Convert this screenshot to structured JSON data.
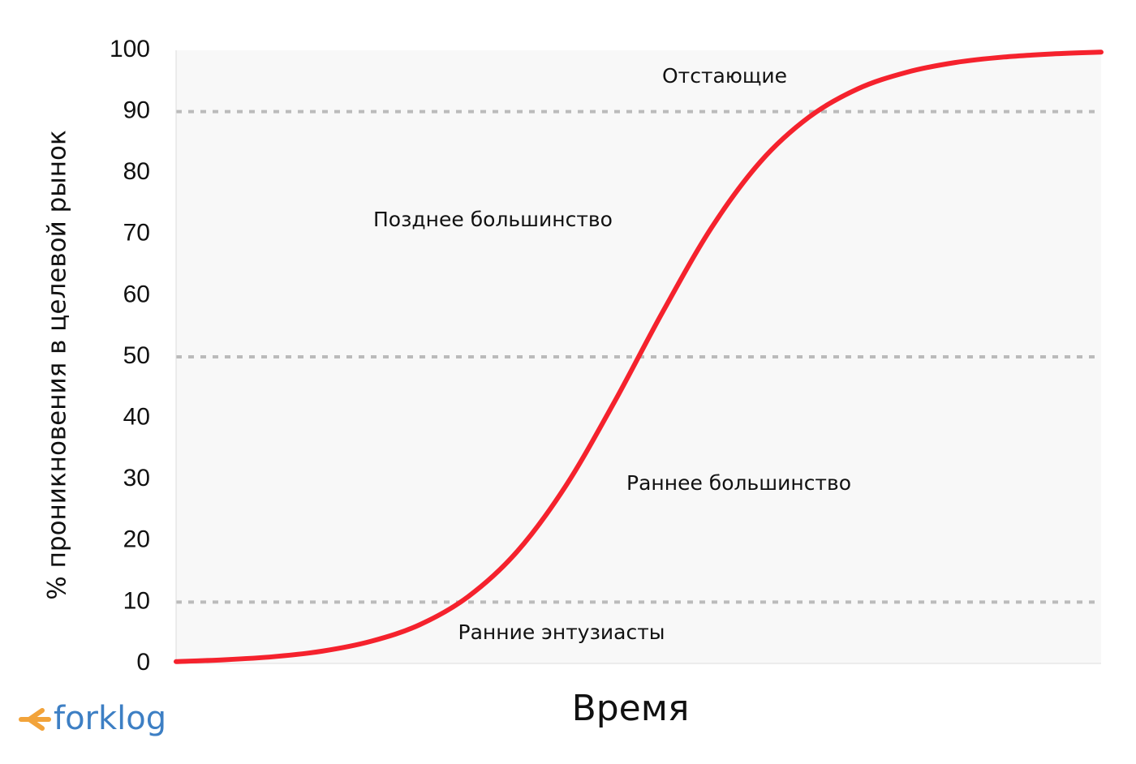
{
  "chart_data": {
    "type": "line",
    "y_label": "% проникновения в целевой рынок",
    "x_label": "Время",
    "categories": [
      null,
      null,
      null,
      null,
      null,
      null,
      null,
      null,
      null,
      null,
      null,
      null,
      null,
      null,
      null,
      null,
      null,
      null,
      null,
      null
    ],
    "series": [
      {
        "color": "#f5222d",
        "values": [
          0.3,
          0.6,
          1.1,
          2.0,
          3.6,
          6.3,
          10.9,
          18.2,
          28.9,
          42.6,
          57.4,
          71.1,
          81.8,
          89.1,
          93.7,
          96.4,
          98.0,
          98.9,
          99.4,
          99.7
        ]
      }
    ],
    "ylim": [
      0,
      100
    ],
    "yticks": [
      0,
      10,
      20,
      30,
      40,
      50,
      60,
      70,
      80,
      90,
      100
    ],
    "grid_lines": [
      10,
      50,
      90
    ],
    "annotations": [
      "Отстающие",
      "Позднее большинство",
      "Раннее большинство",
      "Ранние энтузиасты"
    ],
    "watermark": "forklog"
  }
}
